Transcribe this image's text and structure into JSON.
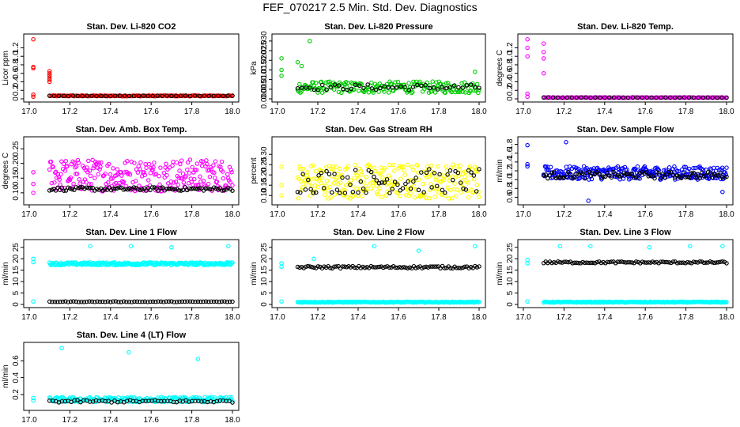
{
  "page": {
    "title": "FEF_070217  2.5 Min. Std. Dev. Diagnostics"
  },
  "colors": {
    "ref_series": "#000000",
    "red": "#ff0000",
    "green": "#00cc00",
    "magenta": "#ff00ff",
    "yellow": "#ffff00",
    "blue": "#0000ff",
    "cyan": "#00ffff"
  },
  "chart_data": [
    {
      "type": "scatter",
      "title": "Stan. Dev. Li-820 CO2",
      "ylabel": "Licor ppm",
      "xlabel": "",
      "xlim": [
        17.0,
        18.0
      ],
      "ylim": [
        0,
        1.45
      ],
      "xticks": [
        "17.0",
        "17.2",
        "17.4",
        "17.6",
        "17.8",
        "18.0"
      ],
      "yticks": [
        "0",
        "0.2",
        "0.4",
        "0.6",
        "0.8",
        "1.0",
        "1.2"
      ],
      "series": [
        {
          "name": "stdev",
          "color": "red",
          "x": [
            17.02,
            17.02,
            17.02,
            17.02,
            17.02,
            17.1,
            17.1,
            17.1,
            17.1,
            17.1,
            17.1
          ],
          "y": [
            1.4,
            0.75,
            0.72,
            0.1,
            0.05,
            0.65,
            0.6,
            0.55,
            0.5,
            0.45,
            0.4
          ],
          "base": 0.07,
          "spread": 0.02,
          "count": 150,
          "x_start": 17.1
        },
        {
          "name": "ref",
          "color": "ref_series",
          "base": 0.07,
          "spread": 0.01,
          "count": 40,
          "x_start": 17.1
        }
      ]
    },
    {
      "type": "scatter",
      "title": "Stan. Dev. Li-820 Pressure",
      "ylabel": "kPa",
      "xlabel": "",
      "xlim": [
        17.0,
        18.0
      ],
      "ylim": [
        0,
        0.032
      ],
      "xticks": [
        "17.0",
        "17.2",
        "17.4",
        "17.6",
        "17.8",
        "18.0"
      ],
      "yticks": [
        "0.000",
        "0.005",
        "0.010",
        "0.015",
        "0.020",
        "0.025",
        "0.030"
      ],
      "series": [
        {
          "name": "stdev",
          "color": "green",
          "x": [
            17.02,
            17.02,
            17.02,
            17.16,
            17.98,
            17.1,
            17.12
          ],
          "y": [
            0.021,
            0.015,
            0.012,
            0.03,
            0.014,
            0.019,
            0.017
          ],
          "base": 0.006,
          "spread": 0.006,
          "count": 200,
          "x_start": 17.1
        },
        {
          "name": "ref",
          "color": "ref_series",
          "base": 0.006,
          "spread": 0.003,
          "count": 45,
          "x_start": 17.1
        }
      ]
    },
    {
      "type": "scatter",
      "title": "Stan. Dev. Li-820 Temp.",
      "ylabel": "degrees C",
      "xlabel": "",
      "xlim": [
        17.0,
        18.0
      ],
      "ylim": [
        0,
        1.45
      ],
      "xticks": [
        "17.0",
        "17.2",
        "17.4",
        "17.6",
        "17.8",
        "18.0"
      ],
      "yticks": [
        "0",
        "0.2",
        "0.4",
        "0.6",
        "0.8",
        "1.0",
        "1.2"
      ],
      "series": [
        {
          "name": "stdev",
          "color": "magenta",
          "x": [
            17.02,
            17.02,
            17.02,
            17.02,
            17.02,
            17.1,
            17.1,
            17.1,
            17.1
          ],
          "y": [
            1.4,
            1.2,
            1.0,
            0.12,
            0.05,
            1.3,
            1.1,
            0.95,
            0.6
          ],
          "base": 0.03,
          "spread": 0.01,
          "count": 150,
          "x_start": 17.1
        },
        {
          "name": "ref",
          "color": "ref_series",
          "base": 0.03,
          "spread": 0.005,
          "count": 40,
          "x_start": 17.1
        }
      ]
    },
    {
      "type": "scatter",
      "title": "Stan. Dev. Amb. Box Temp.",
      "ylabel": "degrees C",
      "xlabel": "",
      "xlim": [
        17.0,
        18.0
      ],
      "ylim": [
        0.07,
        0.28
      ],
      "xticks": [
        "17.0",
        "17.2",
        "17.4",
        "17.6",
        "17.8",
        "18.0"
      ],
      "yticks": [
        "0.10",
        "0.15",
        "0.20",
        "0.25"
      ],
      "series": [
        {
          "name": "stdev",
          "color": "magenta",
          "x": [
            17.02,
            17.02,
            17.02
          ],
          "y": [
            0.17,
            0.13,
            0.1
          ],
          "base": 0.16,
          "spread": 0.11,
          "count": 260,
          "x_start": 17.1
        },
        {
          "name": "ref",
          "color": "ref_series",
          "base": 0.113,
          "spread": 0.012,
          "count": 90,
          "x_start": 17.1
        }
      ]
    },
    {
      "type": "scatter",
      "title": "Stan. Dev. Gas Stream RH",
      "ylabel": "percent",
      "xlabel": "",
      "xlim": [
        17.0,
        18.0
      ],
      "ylim": [
        0.07,
        0.37
      ],
      "xticks": [
        "17.0",
        "17.2",
        "17.4",
        "17.6",
        "17.8",
        "18.0"
      ],
      "yticks": [
        "0.10",
        "0.15",
        "0.20",
        "0.25",
        "0.30"
      ],
      "series": [
        {
          "name": "stdev",
          "color": "yellow",
          "x": [
            17.02,
            17.02,
            17.02
          ],
          "y": [
            0.24,
            0.15,
            0.1
          ],
          "base": 0.17,
          "spread": 0.17,
          "count": 260,
          "x_start": 17.1
        },
        {
          "name": "ref",
          "color": "ref_series",
          "base": 0.17,
          "spread": 0.12,
          "count": 70,
          "x_start": 17.1
        }
      ]
    },
    {
      "type": "scatter",
      "title": "Stan. Dev. Sample Flow",
      "ylabel": "ml/min",
      "xlabel": "",
      "xlim": [
        17.0,
        18.0
      ],
      "ylim": [
        0.5,
        1.9
      ],
      "xticks": [
        "17.0",
        "17.2",
        "17.4",
        "17.6",
        "17.8",
        "18.0"
      ],
      "yticks": [
        "0.6",
        "0.8",
        "1.0",
        "1.2",
        "1.4",
        "1.6",
        "1.8"
      ],
      "series": [
        {
          "name": "stdev",
          "color": "blue",
          "x": [
            17.02,
            17.02,
            17.02,
            17.21,
            17.98,
            17.32
          ],
          "y": [
            1.78,
            1.35,
            1.3,
            1.85,
            0.72,
            0.52
          ],
          "base": 1.15,
          "spread": 0.3,
          "count": 260,
          "x_start": 17.1
        },
        {
          "name": "ref",
          "color": "ref_series",
          "base": 1.1,
          "spread": 0.15,
          "count": 90,
          "x_start": 17.1
        }
      ]
    },
    {
      "type": "scatter",
      "title": "Stan. Dev. Line 1 Flow",
      "ylabel": "ml/min",
      "xlabel": "",
      "xlim": [
        17.0,
        18.0
      ],
      "ylim": [
        0,
        27
      ],
      "xticks": [
        "17.0",
        "17.2",
        "17.4",
        "17.6",
        "17.8",
        "18.0"
      ],
      "yticks": [
        "0",
        "5",
        "10",
        "15",
        "20",
        "25"
      ],
      "series": [
        {
          "name": "stdev",
          "color": "cyan",
          "x": [
            17.02,
            17.02,
            17.02,
            17.5,
            17.7,
            17.98,
            17.3
          ],
          "y": [
            20.0,
            18.5,
            1.3,
            25.5,
            25.0,
            25.5,
            25.5
          ],
          "base": 17.8,
          "spread": 1.2,
          "count": 260,
          "x_start": 17.1
        },
        {
          "name": "ref",
          "color": "ref_series",
          "base": 1.2,
          "spread": 0.3,
          "count": 70,
          "x_start": 17.1
        }
      ]
    },
    {
      "type": "scatter",
      "title": "Stan. Dev. Line 2 Flow",
      "ylabel": "ml/min",
      "xlabel": "",
      "xlim": [
        17.0,
        18.0
      ],
      "ylim": [
        0,
        27
      ],
      "xticks": [
        "17.0",
        "17.2",
        "17.4",
        "17.6",
        "17.8",
        "18.0"
      ],
      "yticks": [
        "0",
        "5",
        "10",
        "15",
        "20",
        "25"
      ],
      "series": [
        {
          "name": "stdev",
          "color": "cyan",
          "x": [
            17.02,
            17.02,
            17.02,
            17.18,
            17.48,
            17.7,
            17.98
          ],
          "y": [
            18.0,
            16.5,
            1.3,
            20.0,
            25.5,
            23.5,
            25.5
          ],
          "base": 1.0,
          "spread": 0.4,
          "count": 200,
          "x_start": 17.1
        },
        {
          "name": "ref",
          "color": "ref_series",
          "base": 16.3,
          "spread": 1.0,
          "count": 90,
          "x_start": 17.1
        }
      ]
    },
    {
      "type": "scatter",
      "title": "Stan. Dev. Line 3 Flow",
      "ylabel": "ml/min",
      "xlabel": "",
      "xlim": [
        17.0,
        18.0
      ],
      "ylim": [
        0,
        27
      ],
      "xticks": [
        "17.0",
        "17.2",
        "17.4",
        "17.6",
        "17.8",
        "18.0"
      ],
      "yticks": [
        "0",
        "5",
        "10",
        "15",
        "20",
        "25"
      ],
      "series": [
        {
          "name": "stdev",
          "color": "cyan",
          "x": [
            17.02,
            17.02,
            17.02,
            17.18,
            17.33,
            17.62,
            17.82,
            17.98
          ],
          "y": [
            19.5,
            18.0,
            1.3,
            25.5,
            25.5,
            25.0,
            25.5,
            25.5
          ],
          "base": 1.0,
          "spread": 0.4,
          "count": 200,
          "x_start": 17.1
        },
        {
          "name": "ref",
          "color": "ref_series",
          "base": 18.4,
          "spread": 0.8,
          "count": 90,
          "x_start": 17.1
        }
      ]
    },
    {
      "type": "scatter",
      "title": "Stan. Dev. Line 4 (LT) Flow",
      "ylabel": "ml/min",
      "xlabel": "",
      "xlim": [
        17.0,
        18.0
      ],
      "ylim": [
        0.05,
        0.78
      ],
      "xticks": [
        "17.0",
        "17.2",
        "17.4",
        "17.6",
        "17.8",
        "18.0"
      ],
      "yticks": [
        "0.2",
        "0.4",
        "0.6"
      ],
      "series": [
        {
          "name": "stdev",
          "color": "cyan",
          "x": [
            17.02,
            17.02,
            17.16,
            17.49,
            17.83
          ],
          "y": [
            0.16,
            0.13,
            0.75,
            0.7,
            0.62
          ],
          "base": 0.14,
          "spread": 0.06,
          "count": 200,
          "x_start": 17.1
        },
        {
          "name": "ref",
          "color": "ref_series",
          "base": 0.12,
          "spread": 0.03,
          "count": 60,
          "x_start": 17.1
        }
      ]
    }
  ]
}
